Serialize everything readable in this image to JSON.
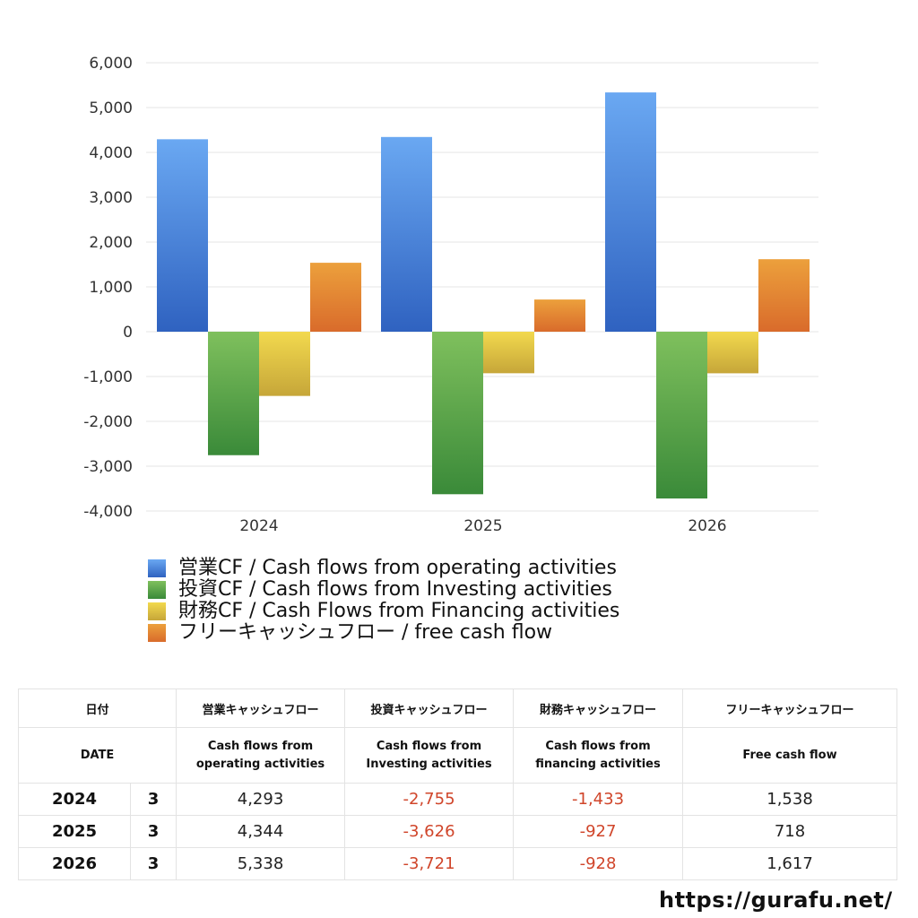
{
  "chart_data": {
    "type": "bar",
    "categories": [
      "2024",
      "2025",
      "2026"
    ],
    "series": [
      {
        "name": "営業CF / Cash flows from operating activities",
        "values": [
          4293,
          4344,
          5338
        ],
        "color_top": "#6aa8f2",
        "color_bottom": "#2f62c0"
      },
      {
        "name": "投資CF / Cash flows from Investing activities",
        "values": [
          -2755,
          -3626,
          -3721
        ],
        "color_top": "#7fc05d",
        "color_bottom": "#3a8a39"
      },
      {
        "name": "財務CF / Cash Flows from Financing activities",
        "values": [
          -1433,
          -927,
          -928
        ],
        "color_top": "#f2d94e",
        "color_bottom": "#c6a639"
      },
      {
        "name": "フリーキャッシュフロー / free cash flow",
        "values": [
          1538,
          718,
          1617
        ],
        "color_top": "#eca03c",
        "color_bottom": "#d96b2b"
      }
    ],
    "ylim": [
      -4000,
      6000
    ],
    "yticks": [
      6000,
      5000,
      4000,
      3000,
      2000,
      1000,
      0,
      -1000,
      -2000,
      -3000,
      -4000
    ],
    "ytick_labels": [
      "6,000",
      "5,000",
      "4,000",
      "3,000",
      "2,000",
      "1,000",
      "0",
      "-1,000",
      "-2,000",
      "-3,000",
      "-4,000"
    ],
    "grid": true,
    "legend_position": "bottom"
  },
  "table": {
    "headers_ja": [
      "日付",
      "営業キャッシュフロー",
      "投資キャッシュフロー",
      "財務キャッシュフロー",
      "フリーキャッシュフロー"
    ],
    "headers_en": [
      "DATE",
      "Cash flows from operating activities",
      "Cash flows from Investing activities",
      "Cash flows from financing activities",
      "Free cash flow"
    ],
    "rows": [
      {
        "year": "2024",
        "month": "3",
        "op": "4,293",
        "inv": "-2,755",
        "fin": "-1,433",
        "fcf": "1,538"
      },
      {
        "year": "2025",
        "month": "3",
        "op": "4,344",
        "inv": "-3,626",
        "fin": "-927",
        "fcf": "718"
      },
      {
        "year": "2026",
        "month": "3",
        "op": "5,338",
        "inv": "-3,721",
        "fin": "-928",
        "fcf": "1,617"
      }
    ]
  },
  "site_url": "https://gurafu.net/",
  "colors": {
    "negative_text": "#d0452a",
    "grid": "#e6e6e6"
  }
}
